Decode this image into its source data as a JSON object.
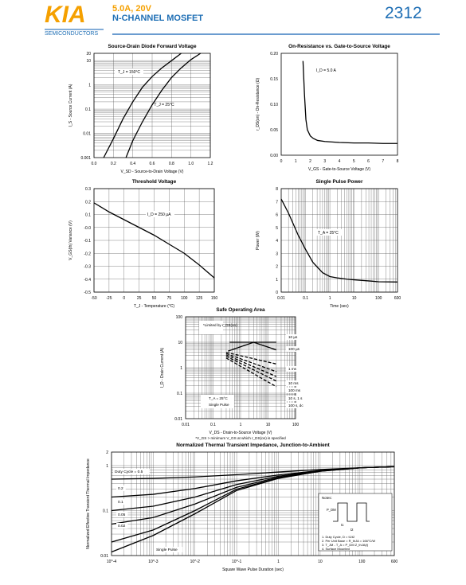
{
  "header": {
    "logo": "KIA",
    "company": "SEMICONDUCTORS",
    "spec_line1": "5.0A,    20V",
    "spec_line2": "N-CHANNEL MOSFET",
    "part": "2312",
    "brand_color": "#f5a000",
    "accent_color": "#1f6fb5",
    "rule_color": "#3a7cc0"
  },
  "chart_data": [
    {
      "type": "line",
      "title": "Source-Drain Diode Forward Voltage",
      "xlabel": "V_SD - Source-to-Drain Voltage (V)",
      "ylabel": "I_S - Source Current (A)",
      "xlim": [
        0,
        1.2
      ],
      "ylim": [
        0.001,
        20
      ],
      "yscale": "log",
      "xticks": [
        "0.0",
        "0.2",
        "0.4",
        "0.6",
        "0.8",
        "1.0",
        "1.2"
      ],
      "yticks": [
        "20",
        "10",
        "1",
        "0.1",
        "0.01",
        "0.001"
      ],
      "grid": true,
      "series": [
        {
          "name": "T_J = 150°C",
          "x": [
            0.1,
            0.2,
            0.3,
            0.4,
            0.5,
            0.6,
            0.7,
            0.8,
            0.9
          ],
          "y": [
            0.001,
            0.006,
            0.04,
            0.2,
            0.8,
            2.2,
            5,
            10,
            20
          ]
        },
        {
          "name": "T_J = 25°C",
          "x": [
            0.33,
            0.4,
            0.5,
            0.6,
            0.7,
            0.8,
            0.9,
            1.0,
            1.1
          ],
          "y": [
            0.001,
            0.005,
            0.03,
            0.15,
            0.6,
            2,
            5,
            11,
            20
          ]
        }
      ]
    },
    {
      "type": "line",
      "title": "On-Resistance vs. Gate-to-Source Voltage",
      "xlabel": "V_GS - Gate-to-Source Voltage (V)",
      "ylabel": "r_DS(on) - On-Resistance (Ω)",
      "xlim": [
        0,
        8
      ],
      "ylim": [
        0,
        0.2
      ],
      "xticks": [
        "0",
        "1",
        "2",
        "3",
        "4",
        "5",
        "6",
        "7",
        "8"
      ],
      "yticks": [
        "0.20",
        "0.15",
        "0.10",
        "0.05",
        "0.00"
      ],
      "grid": false,
      "annotations": [
        "I_D = 5.0 A"
      ],
      "series": [
        {
          "x": [
            1.5,
            1.6,
            1.7,
            1.8,
            2.0,
            2.2,
            2.5,
            3,
            4,
            5,
            6,
            7,
            8
          ],
          "y": [
            0.185,
            0.12,
            0.07,
            0.05,
            0.038,
            0.033,
            0.029,
            0.027,
            0.025,
            0.024,
            0.024,
            0.023,
            0.023
          ]
        }
      ]
    },
    {
      "type": "line",
      "title": "Threshold Voltage",
      "xlabel": "T_J - Temperature (°C)",
      "ylabel": "V_GS(th) Variance (V)",
      "xlim": [
        -50,
        150
      ],
      "ylim": [
        -0.5,
        0.3
      ],
      "xticks": [
        "-50",
        "-25",
        "0",
        "25",
        "50",
        "75",
        "100",
        "125",
        "150"
      ],
      "yticks": [
        "0.3",
        "0.2",
        "0.1",
        "-0.0",
        "-0.1",
        "-0.2",
        "-0.3",
        "-0.4",
        "-0.5"
      ],
      "grid": true,
      "annotations": [
        "I_D = 250 µA"
      ],
      "series": [
        {
          "x": [
            -50,
            -25,
            0,
            25,
            50,
            75,
            100,
            125,
            150
          ],
          "y": [
            0.19,
            0.12,
            0.06,
            0.0,
            -0.06,
            -0.13,
            -0.2,
            -0.29,
            -0.39
          ]
        }
      ]
    },
    {
      "type": "line",
      "title": "Single Pulse Power",
      "xlabel": "Time (sec)",
      "ylabel": "Power (W)",
      "xscale": "log",
      "xlim": [
        0.01,
        600
      ],
      "ylim": [
        0,
        8
      ],
      "xticks": [
        "0.01",
        "0.1",
        "1",
        "10",
        "100",
        "600"
      ],
      "yticks": [
        "8",
        "7",
        "6",
        "5",
        "4",
        "3",
        "2",
        "1",
        "0"
      ],
      "grid": true,
      "annotations": [
        "T_A = 25°C"
      ],
      "series": [
        {
          "x": [
            0.01,
            0.02,
            0.05,
            0.1,
            0.2,
            0.5,
            1,
            2,
            5,
            10,
            50,
            100,
            600
          ],
          "y": [
            7.2,
            6.1,
            4.4,
            3.3,
            2.3,
            1.5,
            1.2,
            1.1,
            1.0,
            0.95,
            0.85,
            0.8,
            0.78
          ]
        }
      ]
    },
    {
      "type": "line",
      "title": "Safe Operating Area",
      "xlabel": "V_DS - Drain-to-Source Voltage (V)",
      "footnote": "*V_GS > minimum V_GS at which r_DS(on) is specified",
      "ylabel": "I_D - Drain Current (A)",
      "xscale": "log",
      "yscale": "log",
      "xlim": [
        0.01,
        100
      ],
      "ylim": [
        0.01,
        100
      ],
      "xticks": [
        "0.01",
        "0.1",
        "1",
        "10",
        "100"
      ],
      "yticks": [
        "100",
        "10",
        "1",
        "0.1",
        "0.01"
      ],
      "grid": true,
      "annotations": [
        "*Limited by r_DS(on)",
        "T_A = 25°C",
        "Single Pulse"
      ],
      "series": [
        {
          "name": "10 µs",
          "x": [
            0.4,
            10,
            20
          ],
          "y": [
            10,
            10,
            10
          ]
        },
        {
          "name": "100 µs",
          "x": [
            0.35,
            3,
            20
          ],
          "y": [
            4.5,
            10,
            5
          ]
        },
        {
          "name": "1 ms",
          "x": [
            0.3,
            20
          ],
          "y": [
            4,
            1.4
          ]
        },
        {
          "name": "10 ms",
          "x": [
            0.3,
            20
          ],
          "y": [
            3.6,
            0.7
          ]
        },
        {
          "name": "100 ms",
          "x": [
            0.3,
            20
          ],
          "y": [
            3.2,
            0.45
          ]
        },
        {
          "name": "10 s, 1 s",
          "x": [
            0.3,
            20
          ],
          "y": [
            2.8,
            0.3
          ]
        },
        {
          "name": "100 s, dc",
          "x": [
            0.3,
            20
          ],
          "y": [
            2.4,
            0.18
          ]
        }
      ]
    },
    {
      "type": "line",
      "title": "Normalized Thermal Transient Impedance, Junction-to-Ambient",
      "xlabel": "Square Wave Pulse Duration (sec)",
      "ylabel": "Normalized Effective Transient Thermal Impedance",
      "xscale": "log",
      "yscale": "log",
      "xlim": [
        0.0001,
        600
      ],
      "ylim": [
        0.01,
        2
      ],
      "xticks": [
        "10^-4",
        "10^-3",
        "10^-2",
        "10^-1",
        "1",
        "10",
        "100",
        "600"
      ],
      "yticks": [
        "2",
        "1",
        "0.1",
        "0.01"
      ],
      "grid": true,
      "notes": [
        "Notes:",
        "P_DM",
        "t1",
        "t2",
        "1. Duty Cycle, D = t1/t2",
        "2. Per Unit Base = R_thJA = 166°C/W",
        "3. T_JM - T_A = P_DM Z_thJA(t)",
        "4. Surface Mounted"
      ],
      "series": [
        {
          "name": "Duty Cycle = 0.5",
          "x": [
            0.0001,
            0.001,
            0.01,
            0.1,
            1,
            10,
            100,
            600
          ],
          "y": [
            0.5,
            0.52,
            0.56,
            0.63,
            0.72,
            0.82,
            0.9,
            0.95
          ]
        },
        {
          "name": "0.2",
          "x": [
            0.0001,
            0.001,
            0.01,
            0.1,
            1,
            10,
            100,
            600
          ],
          "y": [
            0.2,
            0.23,
            0.31,
            0.46,
            0.62,
            0.78,
            0.9,
            0.95
          ]
        },
        {
          "name": "0.1",
          "x": [
            0.0001,
            0.001,
            0.01,
            0.1,
            1,
            10,
            100,
            600
          ],
          "y": [
            0.1,
            0.125,
            0.2,
            0.38,
            0.58,
            0.77,
            0.9,
            0.95
          ]
        },
        {
          "name": "0.05",
          "x": [
            0.0001,
            0.001,
            0.01,
            0.1,
            1,
            10,
            100,
            600
          ],
          "y": [
            0.05,
            0.07,
            0.14,
            0.33,
            0.55,
            0.76,
            0.9,
            0.95
          ]
        },
        {
          "name": "0.02",
          "x": [
            0.0001,
            0.001,
            0.01,
            0.1,
            1,
            10,
            100,
            600
          ],
          "y": [
            0.02,
            0.037,
            0.1,
            0.3,
            0.53,
            0.75,
            0.9,
            0.95
          ]
        },
        {
          "name": "Single Pulse",
          "x": [
            0.0001,
            0.001,
            0.01,
            0.1,
            1,
            10,
            100,
            600
          ],
          "y": [
            0.012,
            0.028,
            0.085,
            0.28,
            0.52,
            0.75,
            0.9,
            0.95
          ]
        }
      ]
    }
  ]
}
